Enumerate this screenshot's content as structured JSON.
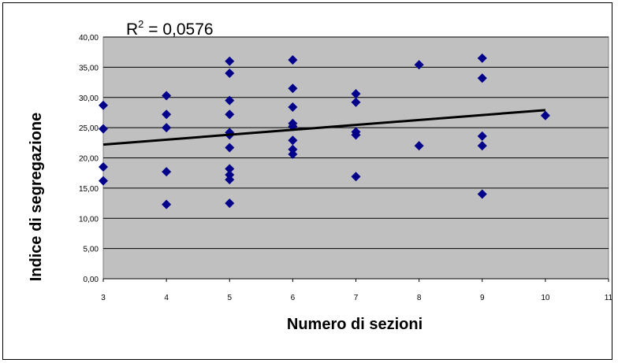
{
  "chart_data": {
    "type": "scatter",
    "xlabel": "Numero di sezioni",
    "ylabel": "Indice di segregazione",
    "annotation": {
      "prefix": "R",
      "sup": "2",
      "text": " = 0,0576"
    },
    "xlim": [
      3,
      11
    ],
    "ylim": [
      0,
      40
    ],
    "x_ticks": [
      "3",
      "4",
      "5",
      "6",
      "7",
      "8",
      "9",
      "10",
      "11"
    ],
    "y_ticks": [
      "0,00",
      "5,00",
      "10,00",
      "15,00",
      "20,00",
      "25,00",
      "30,00",
      "35,00",
      "40,00"
    ],
    "grid": "horizontal",
    "plot_background": "#c0c0c0",
    "marker_color": "#00008b",
    "trendline": {
      "x": [
        3,
        10
      ],
      "y": [
        22.2,
        27.9
      ],
      "color": "#000000"
    },
    "points": [
      {
        "x": 3,
        "y": 28.7
      },
      {
        "x": 3,
        "y": 24.8
      },
      {
        "x": 3,
        "y": 18.5
      },
      {
        "x": 3,
        "y": 16.2
      },
      {
        "x": 4,
        "y": 30.3
      },
      {
        "x": 4,
        "y": 27.2
      },
      {
        "x": 4,
        "y": 25.0
      },
      {
        "x": 4,
        "y": 17.7
      },
      {
        "x": 4,
        "y": 12.3
      },
      {
        "x": 5,
        "y": 36.0
      },
      {
        "x": 5,
        "y": 34.0
      },
      {
        "x": 5,
        "y": 29.5
      },
      {
        "x": 5,
        "y": 27.2
      },
      {
        "x": 5,
        "y": 24.2
      },
      {
        "x": 5,
        "y": 23.8
      },
      {
        "x": 5,
        "y": 21.7
      },
      {
        "x": 5,
        "y": 18.2
      },
      {
        "x": 5,
        "y": 17.2
      },
      {
        "x": 5,
        "y": 16.4
      },
      {
        "x": 5,
        "y": 12.5
      },
      {
        "x": 6,
        "y": 36.2
      },
      {
        "x": 6,
        "y": 31.5
      },
      {
        "x": 6,
        "y": 28.4
      },
      {
        "x": 6,
        "y": 25.7
      },
      {
        "x": 6,
        "y": 25.2
      },
      {
        "x": 6,
        "y": 22.9
      },
      {
        "x": 6,
        "y": 21.4
      },
      {
        "x": 6,
        "y": 20.6
      },
      {
        "x": 7,
        "y": 30.6
      },
      {
        "x": 7,
        "y": 29.2
      },
      {
        "x": 7,
        "y": 24.3
      },
      {
        "x": 7,
        "y": 23.8
      },
      {
        "x": 7,
        "y": 16.9
      },
      {
        "x": 8,
        "y": 35.4
      },
      {
        "x": 8,
        "y": 22.0
      },
      {
        "x": 9,
        "y": 36.5
      },
      {
        "x": 9,
        "y": 33.2
      },
      {
        "x": 9,
        "y": 23.6
      },
      {
        "x": 9,
        "y": 22.0
      },
      {
        "x": 9,
        "y": 14.0
      },
      {
        "x": 10,
        "y": 27.0
      }
    ]
  }
}
